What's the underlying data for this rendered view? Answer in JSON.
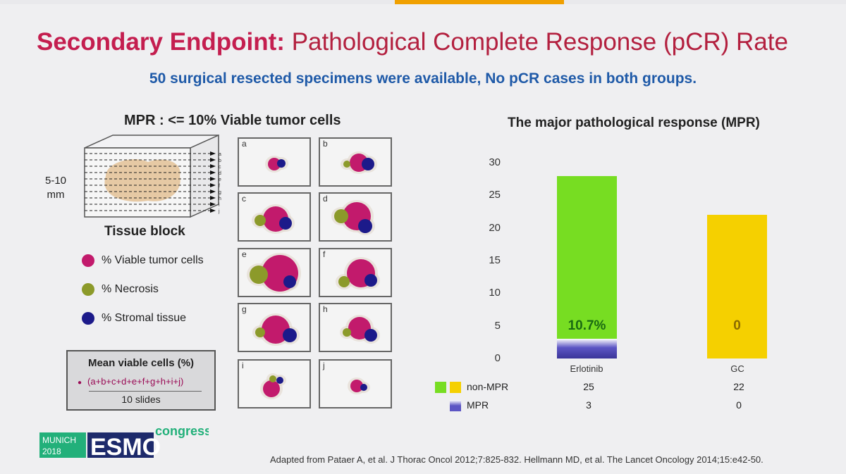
{
  "slide": {
    "title_em": "Secondary Endpoint:",
    "title_rest": "Pathological Complete Response (pCR) Rate",
    "subtitle": "50 surgical resected specimens were available, No pCR cases in both groups.",
    "left_heading": "MPR : <= 10% Viable tumor cells",
    "block_size_line1": "5-10",
    "block_size_line2": "mm",
    "tissue_block": "Tissue block",
    "legend": [
      {
        "label": "% Viable tumor cells",
        "color": "#c21a6c"
      },
      {
        "label": "% Necrosis",
        "color": "#8c9a2a"
      },
      {
        "label": "% Stromal tissue",
        "color": "#1c1a8a"
      }
    ],
    "mean_box": {
      "heading": "Mean viable cells (%)",
      "formula": "(a+b+c+d+e+f+g+h+i+j)",
      "denominator": "10 slides"
    },
    "panels": [
      "a",
      "b",
      "c",
      "d",
      "e",
      "f",
      "g",
      "h",
      "i",
      "j"
    ],
    "block_slice_letters": [
      "a",
      "b",
      "c",
      "d",
      "e",
      "f",
      "g",
      "h",
      "i",
      "j"
    ],
    "footnote": "Adapted from Pataer A, et al. J Thorac Oncol 2012;7:825-832. Hellmann MD, et al. The Lancet Oncology 2014;15:e42-50.",
    "logo": {
      "city": "MUNICH",
      "year": "2018",
      "brand": "ESMO",
      "word": "congress"
    }
  },
  "chart_data": {
    "type": "bar",
    "title": "The major pathological response (MPR)",
    "categories": [
      "Erlotinib",
      "GC"
    ],
    "series": [
      {
        "name": "MPR",
        "values": [
          3,
          0
        ],
        "colors": [
          "#5c55c4",
          "#5c55c4"
        ]
      },
      {
        "name": "non-MPR",
        "values": [
          25,
          22
        ],
        "colors": [
          "#77dd22",
          "#f5d000"
        ]
      }
    ],
    "data_labels": [
      "10.7%",
      "0"
    ],
    "ylim": [
      0,
      30
    ],
    "yticks": [
      "0",
      "5",
      "10",
      "15",
      "20",
      "25",
      "30"
    ],
    "xlabel": "",
    "ylabel": "",
    "grid": false,
    "legend": "table-below"
  }
}
